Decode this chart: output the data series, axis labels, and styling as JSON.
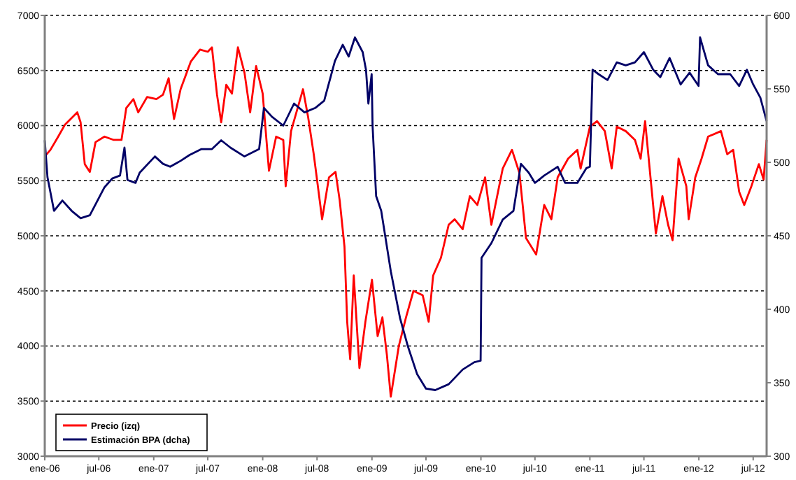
{
  "chart_data": {
    "type": "line",
    "xlim": [
      "2006-01-01",
      "2012-08-15"
    ],
    "xticks": [
      {
        "value": "2006-01-01",
        "label": "ene-06"
      },
      {
        "value": "2006-07-01",
        "label": "jul-06"
      },
      {
        "value": "2007-01-01",
        "label": "ene-07"
      },
      {
        "value": "2007-07-01",
        "label": "jul-07"
      },
      {
        "value": "2008-01-01",
        "label": "ene-08"
      },
      {
        "value": "2008-07-01",
        "label": "jul-08"
      },
      {
        "value": "2009-01-01",
        "label": "ene-09"
      },
      {
        "value": "2009-07-01",
        "label": "jul-09"
      },
      {
        "value": "2010-01-01",
        "label": "ene-10"
      },
      {
        "value": "2010-07-01",
        "label": "jul-10"
      },
      {
        "value": "2011-01-01",
        "label": "ene-11"
      },
      {
        "value": "2011-07-01",
        "label": "jul-11"
      },
      {
        "value": "2012-01-01",
        "label": "ene-12"
      },
      {
        "value": "2012-07-01",
        "label": "jul-12"
      }
    ],
    "ylim": [
      3000,
      7000
    ],
    "yticks": [
      3000,
      3500,
      4000,
      4500,
      5000,
      5500,
      6000,
      6500,
      7000
    ],
    "y2lim": [
      300,
      600
    ],
    "y2ticks": [
      300,
      350,
      400,
      450,
      500,
      550,
      600
    ],
    "grid": "y",
    "legend": "bottom left",
    "line_style": "solid",
    "marker": "none",
    "series": [
      {
        "name": "Precio (izq)",
        "color": "#ff0000",
        "x": [
          "2006-01-01",
          "2006-01-20",
          "2006-02-15",
          "2006-03-10",
          "2006-04-20",
          "2006-05-01",
          "2006-05-15",
          "2006-06-01",
          "2006-06-20",
          "2006-07-20",
          "2006-08-20",
          "2006-09-15",
          "2006-10-01",
          "2006-10-25",
          "2006-11-10",
          "2006-12-10",
          "2007-01-10",
          "2007-02-01",
          "2007-02-20",
          "2007-03-10",
          "2007-04-01",
          "2007-05-05",
          "2007-06-05",
          "2007-07-01",
          "2007-07-15",
          "2007-08-01",
          "2007-08-15",
          "2007-09-01",
          "2007-09-20",
          "2007-10-10",
          "2007-11-01",
          "2007-11-20",
          "2007-12-10",
          "2008-01-01",
          "2008-01-22",
          "2008-02-15",
          "2008-03-10",
          "2008-03-18",
          "2008-04-05",
          "2008-05-15",
          "2008-06-01",
          "2008-06-20",
          "2008-07-10",
          "2008-07-18",
          "2008-08-10",
          "2008-09-01",
          "2008-09-15",
          "2008-10-01",
          "2008-10-10",
          "2008-10-20",
          "2008-11-01",
          "2008-11-20",
          "2008-12-10",
          "2009-01-01",
          "2009-01-20",
          "2009-02-05",
          "2009-02-20",
          "2009-03-05",
          "2009-04-01",
          "2009-04-25",
          "2009-05-20",
          "2009-06-20",
          "2009-07-10",
          "2009-07-25",
          "2009-08-20",
          "2009-09-15",
          "2009-10-05",
          "2009-11-01",
          "2009-11-25",
          "2009-12-20",
          "2010-01-15",
          "2010-02-05",
          "2010-03-15",
          "2010-04-15",
          "2010-05-10",
          "2010-06-01",
          "2010-07-05",
          "2010-08-01",
          "2010-08-25",
          "2010-09-15",
          "2010-10-20",
          "2010-11-20",
          "2010-12-01",
          "2011-01-01",
          "2011-01-25",
          "2011-02-20",
          "2011-03-15",
          "2011-04-01",
          "2011-05-01",
          "2011-06-01",
          "2011-06-20",
          "2011-07-05",
          "2011-08-10",
          "2011-09-01",
          "2011-09-20",
          "2011-10-05",
          "2011-10-25",
          "2011-11-20",
          "2011-11-28",
          "2011-12-20",
          "2012-01-10",
          "2012-02-01",
          "2012-03-15",
          "2012-04-05",
          "2012-04-25",
          "2012-05-15",
          "2012-06-01",
          "2012-06-25",
          "2012-07-20",
          "2012-08-05",
          "2012-08-15"
        ],
        "values": [
          5720,
          5780,
          5900,
          6010,
          6120,
          6030,
          5650,
          5580,
          5850,
          5900,
          5870,
          5870,
          6160,
          6240,
          6120,
          6260,
          6240,
          6280,
          6430,
          6060,
          6330,
          6580,
          6690,
          6670,
          6710,
          6280,
          6030,
          6370,
          6290,
          6710,
          6480,
          6120,
          6540,
          6290,
          5590,
          5900,
          5870,
          5450,
          5950,
          6330,
          6080,
          5740,
          5320,
          5150,
          5530,
          5580,
          5320,
          4900,
          4220,
          3880,
          4640,
          3800,
          4220,
          4600,
          4090,
          4260,
          3920,
          3540,
          4000,
          4260,
          4500,
          4460,
          4220,
          4640,
          4800,
          5100,
          5150,
          5060,
          5360,
          5280,
          5530,
          5100,
          5610,
          5780,
          5570,
          4980,
          4830,
          5280,
          5150,
          5530,
          5700,
          5780,
          5610,
          5990,
          6040,
          5950,
          5610,
          5990,
          5950,
          5870,
          5700,
          6040,
          5020,
          5360,
          5100,
          4960,
          5700,
          5450,
          5150,
          5530,
          5700,
          5900,
          5950,
          5740,
          5780,
          5400,
          5280,
          5450,
          5650,
          5510,
          5870
        ]
      },
      {
        "name": "Estimación BPA (dcha)",
        "color": "#000066",
        "axis": "y2",
        "x": [
          "2006-01-01",
          "2006-01-10",
          "2006-02-01",
          "2006-03-01",
          "2006-04-01",
          "2006-05-01",
          "2006-06-01",
          "2006-07-20",
          "2006-08-15",
          "2006-09-10",
          "2006-09-25",
          "2006-10-05",
          "2006-11-01",
          "2006-11-15",
          "2007-01-05",
          "2007-02-01",
          "2007-02-25",
          "2007-04-01",
          "2007-05-01",
          "2007-06-10",
          "2007-07-15",
          "2007-08-15",
          "2007-09-15",
          "2007-11-01",
          "2007-12-20",
          "2008-01-05",
          "2008-02-01",
          "2008-03-10",
          "2008-04-15",
          "2008-05-20",
          "2008-06-25",
          "2008-07-25",
          "2008-08-30",
          "2008-09-25",
          "2008-10-15",
          "2008-11-05",
          "2008-12-01",
          "2008-12-12",
          "2008-12-20",
          "2008-12-31",
          "2009-01-03",
          "2009-01-15",
          "2009-02-01",
          "2009-03-05",
          "2009-04-05",
          "2009-05-01",
          "2009-06-01",
          "2009-07-01",
          "2009-08-01",
          "2009-09-15",
          "2009-11-01",
          "2009-12-10",
          "2009-12-31",
          "2010-01-03",
          "2010-02-05",
          "2010-03-15",
          "2010-04-20",
          "2010-05-15",
          "2010-06-10",
          "2010-07-01",
          "2010-08-01",
          "2010-09-15",
          "2010-10-10",
          "2010-11-20",
          "2010-12-20",
          "2011-01-01",
          "2011-01-10",
          "2011-01-30",
          "2011-03-01",
          "2011-04-01",
          "2011-05-01",
          "2011-06-01",
          "2011-07-01",
          "2011-08-01",
          "2011-08-25",
          "2011-09-25",
          "2011-11-01",
          "2011-12-01",
          "2011-12-31",
          "2012-01-05",
          "2012-02-01",
          "2012-03-05",
          "2012-04-15",
          "2012-05-15",
          "2012-06-10",
          "2012-07-01",
          "2012-07-25",
          "2012-08-15"
        ],
        "values": [
          515,
          490,
          467,
          474,
          467,
          462,
          464,
          483,
          489,
          491,
          510,
          488,
          486,
          493,
          504,
          499,
          497,
          501,
          505,
          509,
          509,
          515,
          510,
          504,
          509,
          537,
          531,
          525,
          540,
          534,
          537,
          542,
          569,
          580,
          572,
          585,
          575,
          563,
          540,
          560,
          525,
          477,
          467,
          426,
          394,
          375,
          356,
          346,
          345,
          349,
          359,
          364,
          365,
          435,
          445,
          461,
          467,
          499,
          493,
          486,
          491,
          497,
          486,
          486,
          496,
          497,
          563,
          560,
          556,
          568,
          566,
          568,
          575,
          563,
          558,
          571,
          553,
          561,
          552,
          585,
          566,
          560,
          560,
          552,
          563,
          553,
          544,
          528
        ]
      }
    ]
  }
}
